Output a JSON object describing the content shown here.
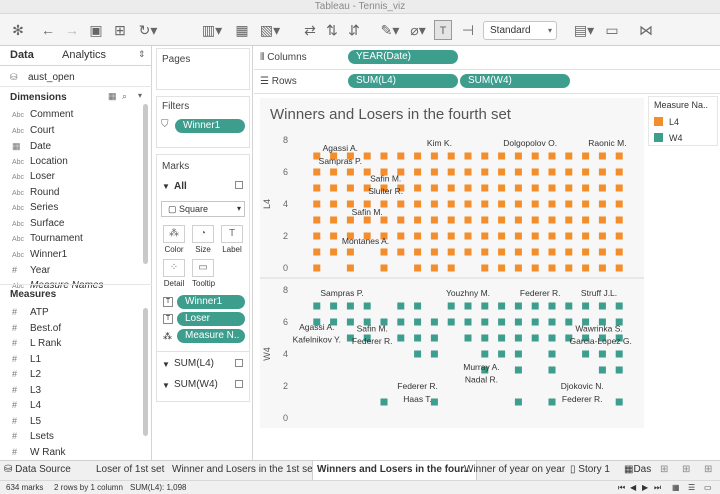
{
  "window_title": "Tableau - Tennis_viz",
  "toolbar": {
    "standard_label": "Standard"
  },
  "left_panel": {
    "tab_data": "Data",
    "tab_analytics": "Analytics",
    "datasource": "aust_open",
    "dimensions_title": "Dimensions",
    "dimensions": [
      {
        "icon": "Abc",
        "label": "Comment"
      },
      {
        "icon": "Abc",
        "label": "Court"
      },
      {
        "icon": "date",
        "label": "Date"
      },
      {
        "icon": "Abc",
        "label": "Location"
      },
      {
        "icon": "Abc",
        "label": "Loser"
      },
      {
        "icon": "Abc",
        "label": "Round"
      },
      {
        "icon": "Abc",
        "label": "Series"
      },
      {
        "icon": "Abc",
        "label": "Surface"
      },
      {
        "icon": "Abc",
        "label": "Tournament"
      },
      {
        "icon": "Abc",
        "label": "Winner1"
      },
      {
        "icon": "#",
        "label": "Year"
      },
      {
        "icon": "Abc",
        "label": "Measure Names"
      }
    ],
    "measures_title": "Measures",
    "measures": [
      {
        "icon": "#",
        "label": "ATP"
      },
      {
        "icon": "#",
        "label": "Best.of"
      },
      {
        "icon": "#",
        "label": "L Rank"
      },
      {
        "icon": "#",
        "label": "L1"
      },
      {
        "icon": "#",
        "label": "L2"
      },
      {
        "icon": "#",
        "label": "L3"
      },
      {
        "icon": "#",
        "label": "L4"
      },
      {
        "icon": "#",
        "label": "L5"
      },
      {
        "icon": "#",
        "label": "Lsets"
      },
      {
        "icon": "#",
        "label": "W Rank"
      }
    ]
  },
  "pages_title": "Pages",
  "filters_title": "Filters",
  "filter_pill": "Winner1",
  "marks": {
    "title": "Marks",
    "all_label": "All",
    "mark_type": "Square",
    "buttons": [
      "Color",
      "Size",
      "Label",
      "Detail",
      "Tooltip"
    ],
    "pills": [
      "Winner1",
      "Loser",
      "Measure N.."
    ],
    "sum_l4": "SUM(L4)",
    "sum_w4": "SUM(W4)"
  },
  "columns_label": "Columns",
  "columns_pill": "YEAR(Date)",
  "rows_label": "Rows",
  "rows_pills": [
    "SUM(L4)",
    "SUM(W4)"
  ],
  "legend": {
    "title": "Measure Na..",
    "items": [
      {
        "label": "L4",
        "color": "#f28e2b"
      },
      {
        "label": "W4",
        "color": "#3e9e8e"
      }
    ]
  },
  "sheet_tabs": [
    "Data Source",
    "Loser of 1st set",
    "Winner  and Losers in the  1st set",
    "Winners and Losers in the four...",
    "Winner of year on year",
    "Story 1",
    "Das"
  ],
  "status": {
    "marks": "634 marks",
    "rows": "2 rows by 1 column",
    "sum": "SUM(L4): 1,098"
  },
  "chart_data": {
    "type": "scatter",
    "title": "Winners and Losers in the fourth set",
    "x_ticks": [
      "2000",
      "2002",
      "2004",
      "2006",
      "2008",
      "2010",
      "2012",
      "2014",
      "2016",
      "2018"
    ],
    "xlim": [
      1999,
      2019
    ],
    "panes": [
      {
        "measure": "L4",
        "ylabel": "L4",
        "ylim": [
          -0.5,
          8.5
        ],
        "y_ticks": [
          "0",
          "2",
          "4",
          "6",
          "8"
        ],
        "color": "#f28e2b",
        "series": [
          {
            "x": 2000,
            "y": [
              7,
              6,
              5,
              4,
              3,
              2,
              1,
              0
            ]
          },
          {
            "x": 2001,
            "y": [
              7,
              6,
              5,
              4,
              3,
              2,
              1
            ]
          },
          {
            "x": 2002,
            "y": [
              7,
              6,
              5,
              4,
              3,
              2,
              1,
              0
            ]
          },
          {
            "x": 2003,
            "y": [
              7,
              6,
              5,
              4,
              3,
              2
            ]
          },
          {
            "x": 2004,
            "y": [
              7,
              6,
              5,
              4,
              3,
              2,
              1,
              0
            ]
          },
          {
            "x": 2005,
            "y": [
              7,
              6,
              5,
              4,
              3,
              2,
              1
            ]
          },
          {
            "x": 2006,
            "y": [
              7,
              6,
              5,
              4,
              3,
              2,
              1,
              0
            ]
          },
          {
            "x": 2007,
            "y": [
              7,
              6,
              5,
              4,
              3,
              2,
              1,
              0
            ]
          },
          {
            "x": 2008,
            "y": [
              7,
              6,
              5,
              4,
              3,
              2,
              1,
              0
            ]
          },
          {
            "x": 2009,
            "y": [
              7,
              6,
              5,
              4,
              3,
              2,
              1
            ]
          },
          {
            "x": 2010,
            "y": [
              7,
              6,
              5,
              4,
              3,
              2,
              1,
              0
            ]
          },
          {
            "x": 2011,
            "y": [
              7,
              6,
              5,
              4,
              3,
              2,
              1,
              0
            ]
          },
          {
            "x": 2012,
            "y": [
              7,
              6,
              5,
              4,
              3,
              2,
              1,
              0
            ]
          },
          {
            "x": 2013,
            "y": [
              7,
              6,
              5,
              4,
              3,
              2,
              1,
              0
            ]
          },
          {
            "x": 2014,
            "y": [
              7,
              6,
              5,
              4,
              3,
              2,
              1,
              0
            ]
          },
          {
            "x": 2015,
            "y": [
              7,
              6,
              5,
              4,
              3,
              2,
              1,
              0
            ]
          },
          {
            "x": 2016,
            "y": [
              7,
              6,
              5,
              4,
              3,
              2,
              1,
              0
            ]
          },
          {
            "x": 2017,
            "y": [
              7,
              6,
              5,
              4,
              3,
              2,
              1,
              0
            ]
          },
          {
            "x": 2018,
            "y": [
              7,
              6,
              5,
              4,
              3,
              2,
              1,
              0
            ]
          }
        ],
        "labels": [
          {
            "text": "Agassi A.",
            "x": 2001.4,
            "y": 7.5
          },
          {
            "text": "Sampras P.",
            "x": 2001.4,
            "y": 6.7
          },
          {
            "text": "Kim K.",
            "x": 2007.3,
            "y": 7.8
          },
          {
            "text": "Dolgopolov O.",
            "x": 2012.7,
            "y": 7.8
          },
          {
            "text": "Raonic M.",
            "x": 2017.3,
            "y": 7.8
          },
          {
            "text": "Safin M.",
            "x": 2004.1,
            "y": 5.6
          },
          {
            "text": "Sluiter R.",
            "x": 2004.1,
            "y": 4.8
          },
          {
            "text": "Safin M.",
            "x": 2003.0,
            "y": 3.5
          },
          {
            "text": "Montanes A.",
            "x": 2002.9,
            "y": 1.7
          }
        ]
      },
      {
        "measure": "W4",
        "ylabel": "W4",
        "ylim": [
          -0.5,
          8.5
        ],
        "y_ticks": [
          "0",
          "2",
          "4",
          "6",
          "8"
        ],
        "color": "#3e9e8e",
        "series": [
          {
            "x": 2000,
            "y": [
              7,
              6
            ]
          },
          {
            "x": 2001,
            "y": [
              7,
              6
            ]
          },
          {
            "x": 2002,
            "y": [
              7,
              6,
              5
            ]
          },
          {
            "x": 2003,
            "y": [
              7,
              6,
              5
            ]
          },
          {
            "x": 2004,
            "y": [
              6,
              1
            ]
          },
          {
            "x": 2005,
            "y": [
              7,
              6,
              5
            ]
          },
          {
            "x": 2006,
            "y": [
              7,
              6,
              5,
              4
            ]
          },
          {
            "x": 2007,
            "y": [
              6,
              5,
              4,
              1
            ]
          },
          {
            "x": 2008,
            "y": [
              7,
              6
            ]
          },
          {
            "x": 2009,
            "y": [
              7,
              6,
              5
            ]
          },
          {
            "x": 2010,
            "y": [
              7,
              6,
              5,
              4,
              3
            ]
          },
          {
            "x": 2011,
            "y": [
              7,
              6,
              5,
              4
            ]
          },
          {
            "x": 2012,
            "y": [
              7,
              6,
              5,
              4,
              3,
              1
            ]
          },
          {
            "x": 2013,
            "y": [
              7,
              6,
              5
            ]
          },
          {
            "x": 2014,
            "y": [
              7,
              6,
              5,
              4,
              3,
              1
            ]
          },
          {
            "x": 2015,
            "y": [
              7,
              6,
              5
            ]
          },
          {
            "x": 2016,
            "y": [
              7,
              6,
              5,
              4
            ]
          },
          {
            "x": 2017,
            "y": [
              7,
              6,
              5,
              4,
              3
            ]
          },
          {
            "x": 2018,
            "y": [
              7,
              6,
              5,
              4,
              3,
              1
            ]
          }
        ],
        "labels": [
          {
            "text": "Sampras P.",
            "x": 2001.5,
            "y": 7.8
          },
          {
            "text": "Youzhny M.",
            "x": 2009.0,
            "y": 7.8
          },
          {
            "text": "Federer R.",
            "x": 2013.3,
            "y": 7.8
          },
          {
            "text": "Struff J.L.",
            "x": 2016.8,
            "y": 7.8
          },
          {
            "text": "Agassi A.",
            "x": 2000.0,
            "y": 5.7
          },
          {
            "text": "Kafelnikov Y.",
            "x": 2000.0,
            "y": 4.9
          },
          {
            "text": "Safin M.",
            "x": 2003.3,
            "y": 5.6
          },
          {
            "text": "Federer R.",
            "x": 2003.3,
            "y": 4.8
          },
          {
            "text": "Wawrinka S.",
            "x": 2016.8,
            "y": 5.6
          },
          {
            "text": "Garcia-Lopez G.",
            "x": 2016.9,
            "y": 4.8
          },
          {
            "text": "Murray A.",
            "x": 2009.8,
            "y": 3.2
          },
          {
            "text": "Nadal R.",
            "x": 2009.8,
            "y": 2.4
          },
          {
            "text": "Federer R.",
            "x": 2006.0,
            "y": 2.0
          },
          {
            "text": "Haas T.",
            "x": 2006.0,
            "y": 1.2
          },
          {
            "text": "Djokovic N.",
            "x": 2015.8,
            "y": 2.0
          },
          {
            "text": "Federer R.",
            "x": 2015.8,
            "y": 1.2
          }
        ]
      }
    ]
  }
}
